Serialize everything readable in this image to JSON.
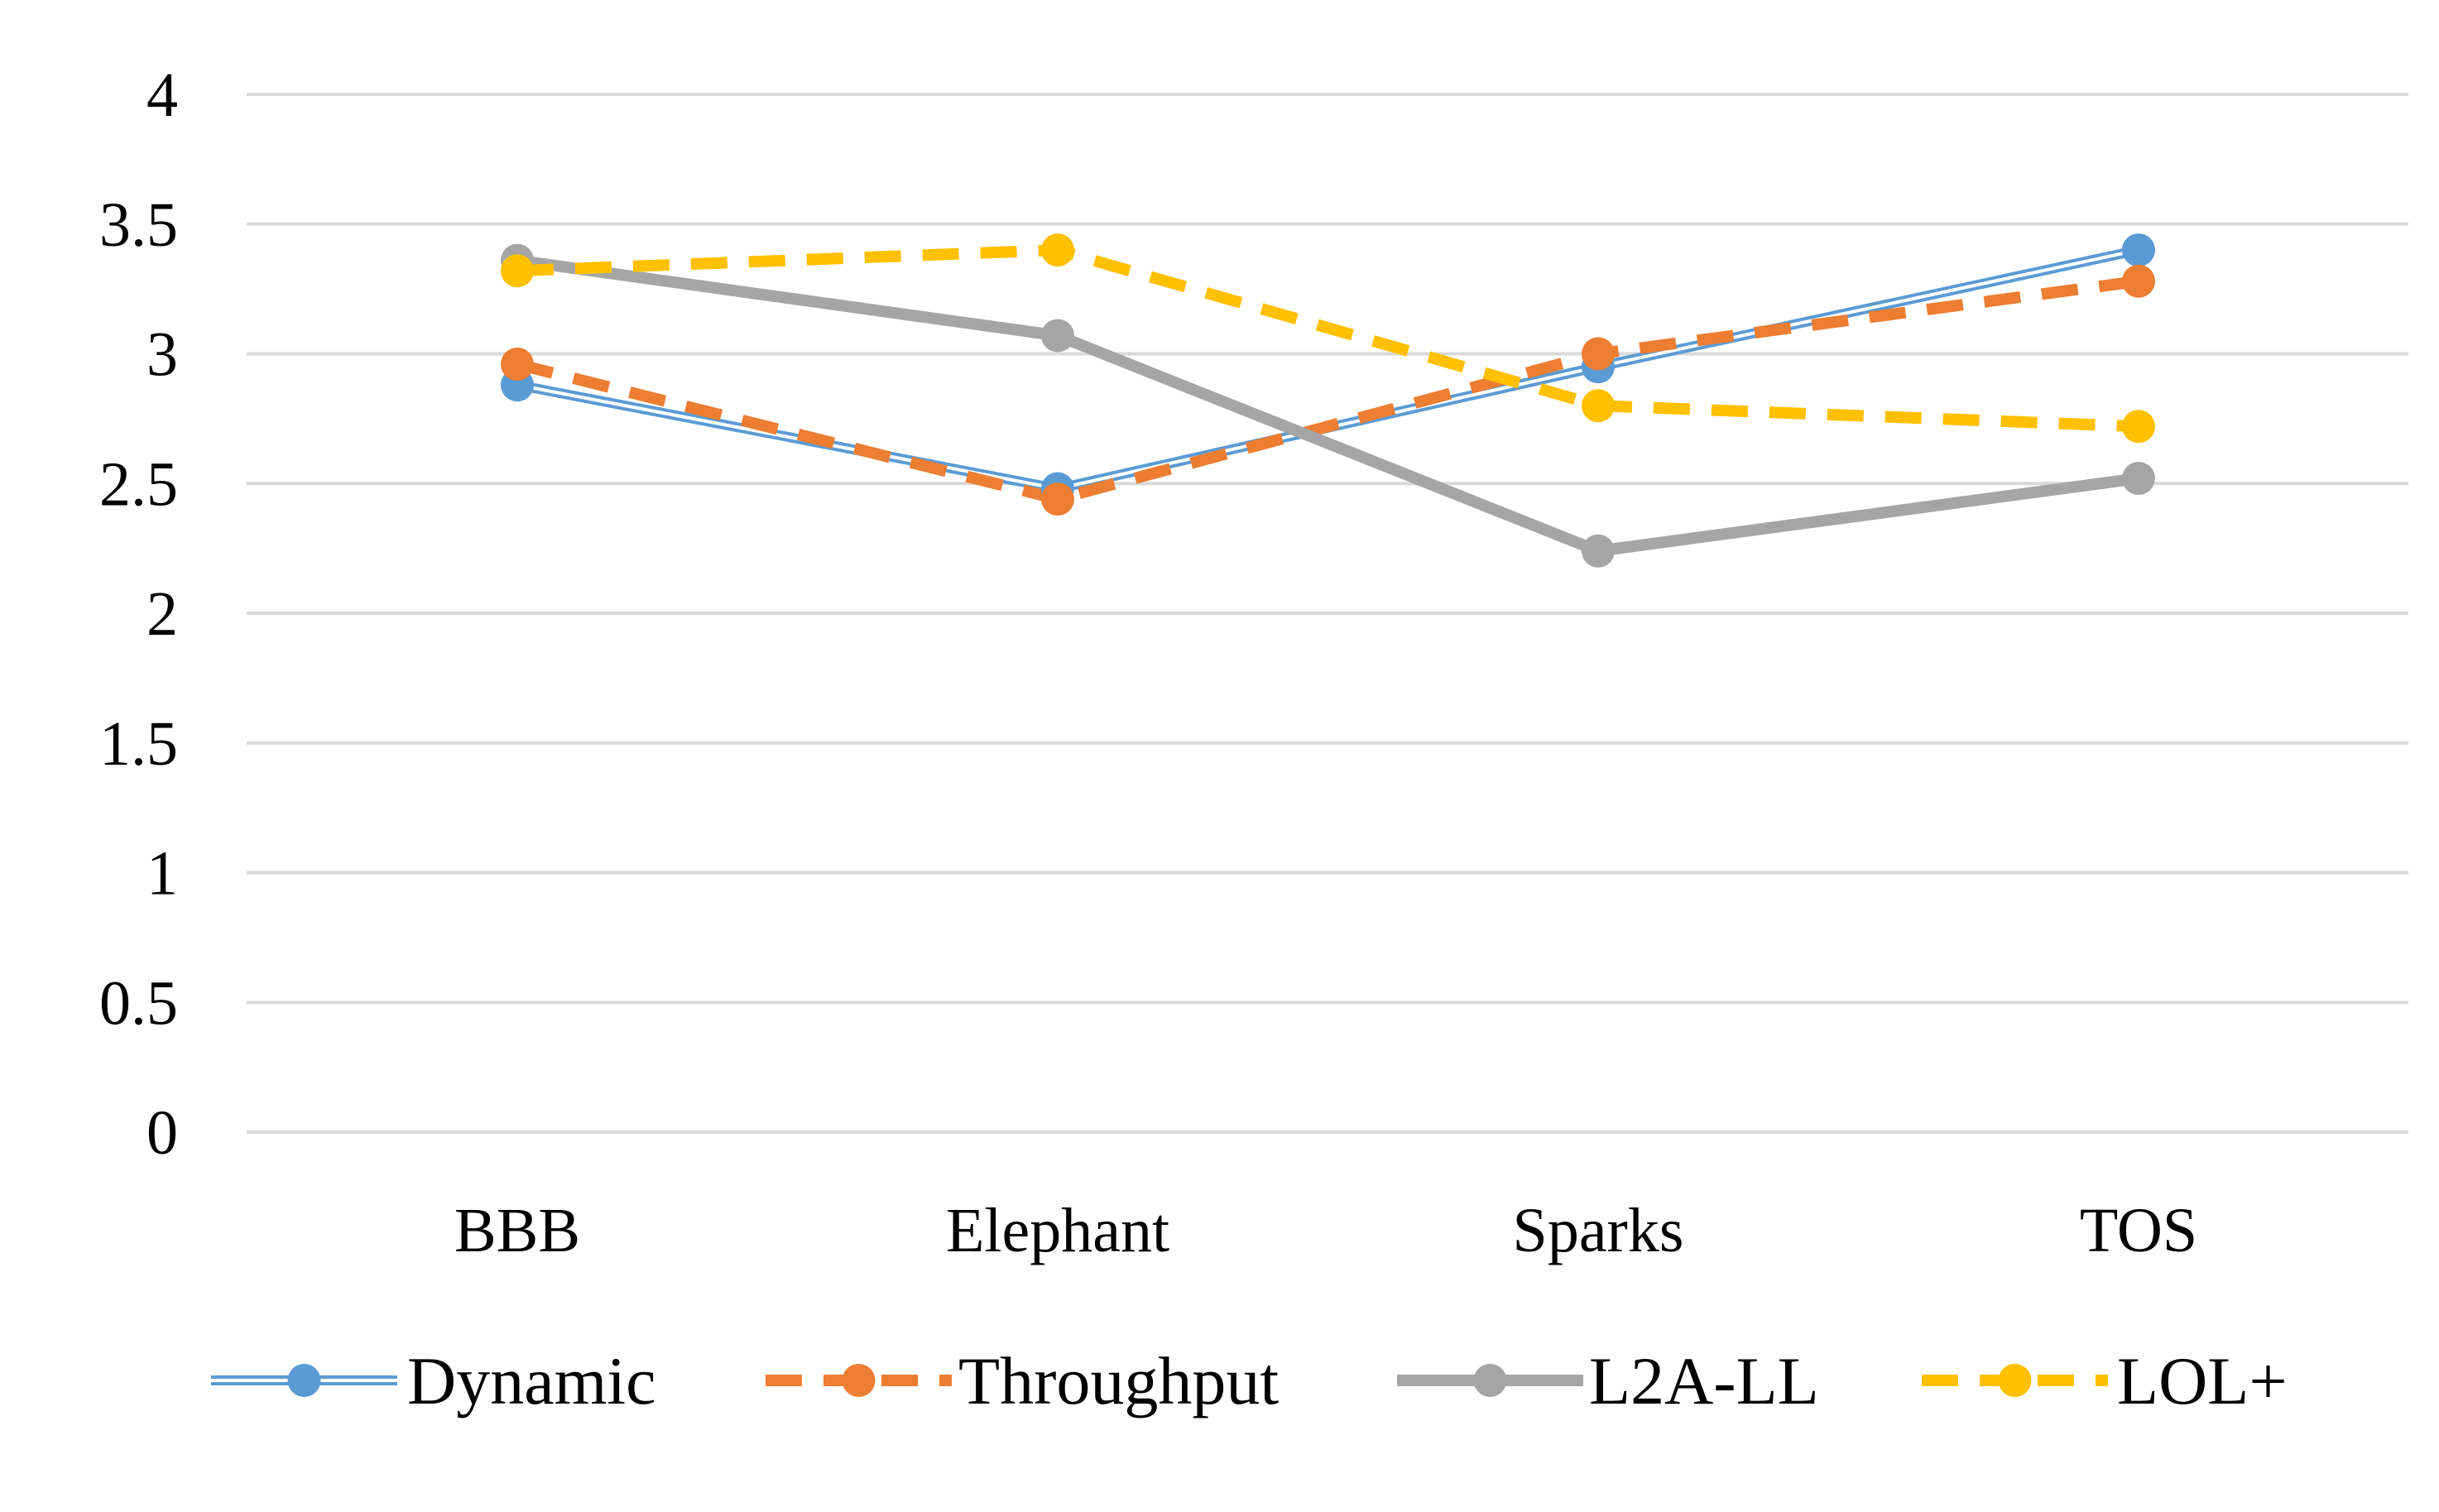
{
  "chart_data": {
    "type": "line",
    "title": "",
    "xlabel": "",
    "ylabel": "",
    "categories": [
      "BBB",
      "Elephant",
      "Sparks",
      "TOS"
    ],
    "ylim": [
      0,
      4
    ],
    "yticks": [
      0,
      0.5,
      1,
      1.5,
      2,
      2.5,
      3,
      3.5,
      4
    ],
    "ytick_labels": [
      "0",
      "0.5",
      "1",
      "1.5",
      "2",
      "2.5",
      "3",
      "3.5",
      "4"
    ],
    "grid": true,
    "legend_position": "bottom",
    "series": [
      {
        "name": "Dynamic",
        "values": [
          2.88,
          2.48,
          2.95,
          3.4
        ],
        "color": "#5b9bd5",
        "style": "double"
      },
      {
        "name": "Throughput",
        "values": [
          2.96,
          2.44,
          3.0,
          3.28
        ],
        "color": "#ed7d31",
        "style": "dashed"
      },
      {
        "name": "L2A-LL",
        "values": [
          3.36,
          3.07,
          2.24,
          2.52
        ],
        "color": "#a5a5a5",
        "style": "solid"
      },
      {
        "name": "LOL+",
        "values": [
          3.32,
          3.4,
          2.8,
          2.72
        ],
        "color": "#ffc000",
        "style": "dashed"
      }
    ]
  }
}
